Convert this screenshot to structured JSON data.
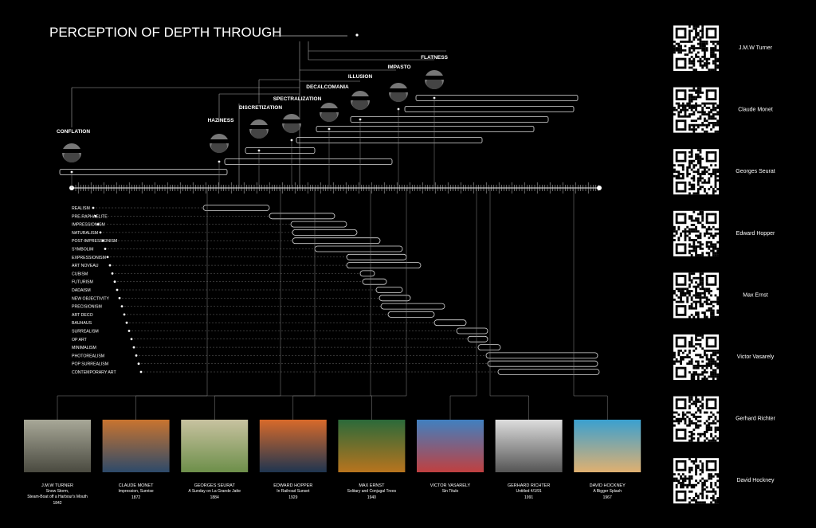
{
  "title": "PERCEPTION OF DEPTH THROUGH",
  "concepts": [
    {
      "label": "CONFLATION"
    },
    {
      "label": "HAZINESS"
    },
    {
      "label": "DISCRETIZATION"
    },
    {
      "label": "SPECTRALIZATION"
    },
    {
      "label": "DECALCOMANIA"
    },
    {
      "label": "ILLUSION"
    },
    {
      "label": "IMPASTO"
    },
    {
      "label": "FLATNESS"
    }
  ],
  "movements": [
    "REALISM",
    "PRE-RAPHAELITE",
    "IMPRESSIONISM",
    "NATURALISM",
    "POST-IMPRESSIONISM",
    "SYMBOLIM",
    "EXPRESSIONISM",
    "ART NOVEAU",
    "CUBISM",
    "FUTURISM",
    "DADAISM",
    "NEW OBJECTIVITY",
    "PRECISIONISM",
    "ART DECO",
    "BAUHAUS",
    "SURREALISM",
    "OP ART",
    "MINIMALISM",
    "PHOTOREALISM",
    "POP SURREALISM",
    "CONTEMPORARY ART"
  ],
  "artworks": [
    {
      "artist": "J.M.W TURNER",
      "title": [
        "Snow Storm,",
        "Steam-Boat off a Harbour's Mouth"
      ],
      "year": "1842"
    },
    {
      "artist": "CLAUDE MONET",
      "title": [
        "Impression, Sunrise"
      ],
      "year": "1872"
    },
    {
      "artist": "GEORGES SEURAT",
      "title": [
        "A Sunday on La Grande Jatte"
      ],
      "year": "1884"
    },
    {
      "artist": "EDWARD HOPPER",
      "title": [
        "In Railroad Sunset"
      ],
      "year": "1929"
    },
    {
      "artist": "MAX ERNST",
      "title": [
        "Solitary and Conjugal Trees"
      ],
      "year": "1940"
    },
    {
      "artist": "VICTOR VASARELY",
      "title": [
        "Sin Titulo"
      ]
    },
    {
      "artist": "GERHARD RICHTER",
      "title": [
        "Untitled 4/1/91"
      ],
      "year": "1991"
    },
    {
      "artist": "DAVID HOCKNEY",
      "title": [
        "A Bigger Splash"
      ],
      "year": "1967"
    }
  ],
  "qr_artists": [
    "J.M.W Turner",
    "Claude Monet",
    "Georges Seurat",
    "Edward Hopper",
    "Max Ernst",
    "Victor Vasarely",
    "Gerhard Richter",
    "David Hockney"
  ]
}
